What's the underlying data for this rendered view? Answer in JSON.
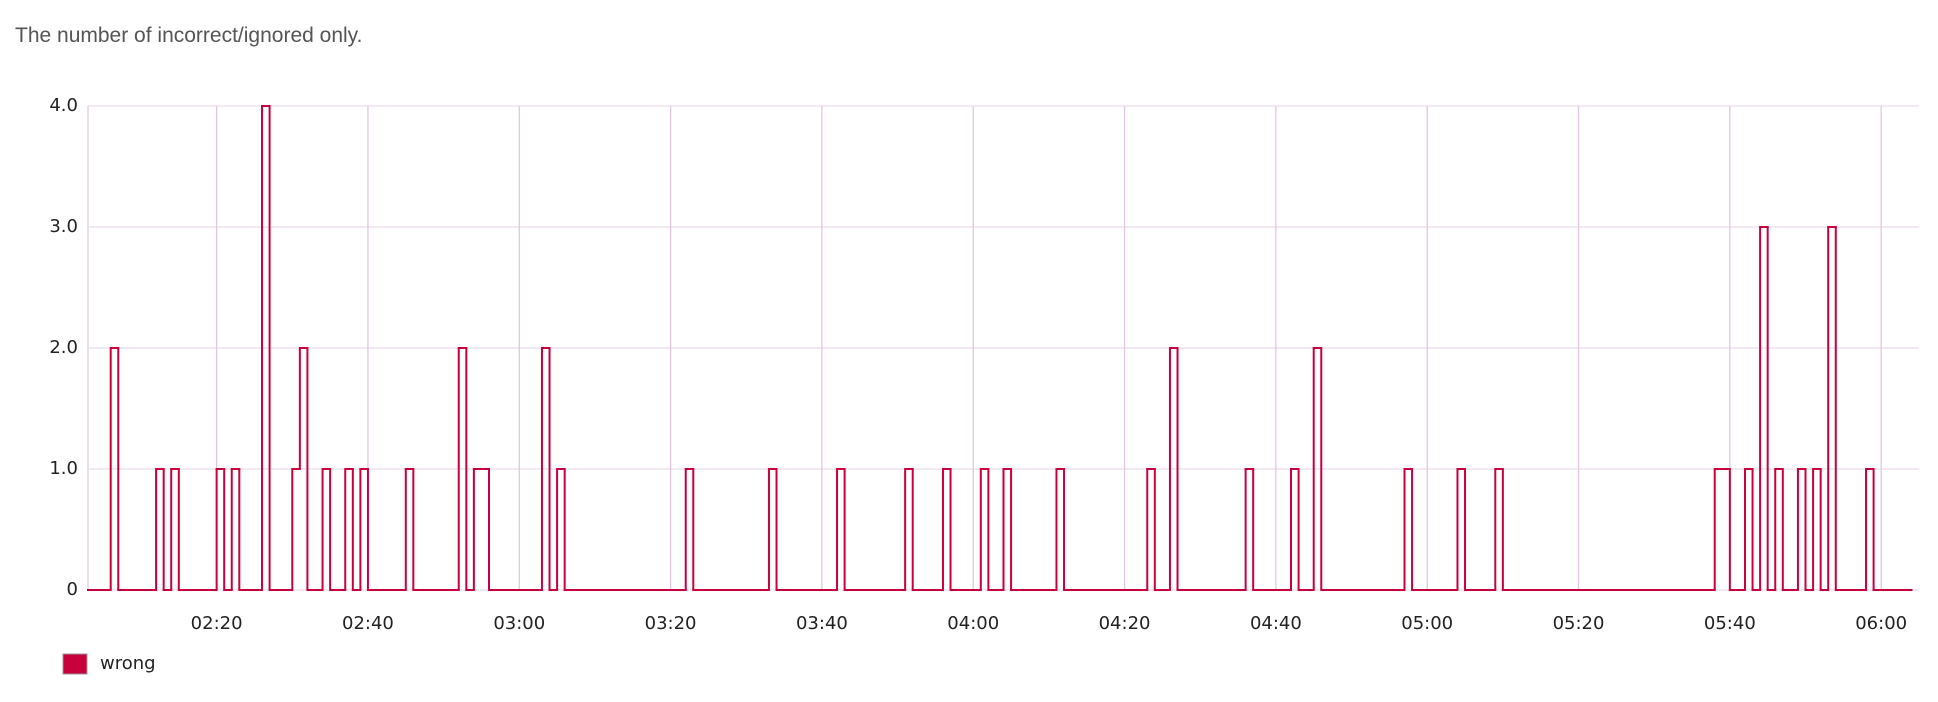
{
  "chart_data": {
    "type": "line",
    "step": "post",
    "title": "The number of incorrect/ignored only.",
    "x": [
      "02:03",
      "02:06",
      "02:07",
      "02:12",
      "02:13",
      "02:14",
      "02:15",
      "02:20",
      "02:21",
      "02:22",
      "02:23",
      "02:26",
      "02:27",
      "02:30",
      "02:31",
      "02:32",
      "02:34",
      "02:35",
      "02:37",
      "02:38",
      "02:39",
      "02:40",
      "02:45",
      "02:46",
      "02:52",
      "02:53",
      "02:54",
      "02:56",
      "03:03",
      "03:04",
      "03:05",
      "03:06",
      "03:22",
      "03:23",
      "03:33",
      "03:34",
      "03:42",
      "03:43",
      "03:51",
      "03:52",
      "03:56",
      "03:57",
      "04:01",
      "04:02",
      "04:04",
      "04:05",
      "04:11",
      "04:12",
      "04:23",
      "04:24",
      "04:26",
      "04:27",
      "04:36",
      "04:37",
      "04:42",
      "04:43",
      "04:45",
      "04:46",
      "04:57",
      "04:58",
      "05:04",
      "05:05",
      "05:09",
      "05:10",
      "05:38",
      "05:40",
      "05:42",
      "05:43",
      "05:44",
      "05:45",
      "05:46",
      "05:47",
      "05:49",
      "05:50",
      "05:51",
      "05:52",
      "05:53",
      "05:54",
      "05:58",
      "05:59",
      "06:04"
    ],
    "series": [
      {
        "name": "wrong",
        "color": "#c8003c",
        "values": [
          0,
          2,
          0,
          1,
          0,
          1,
          0,
          1,
          0,
          1,
          0,
          4,
          0,
          1,
          2,
          0,
          1,
          0,
          1,
          0,
          1,
          0,
          1,
          0,
          2,
          0,
          1,
          0,
          2,
          0,
          1,
          0,
          1,
          0,
          1,
          0,
          1,
          0,
          1,
          0,
          1,
          0,
          1,
          0,
          1,
          0,
          1,
          0,
          1,
          0,
          2,
          0,
          1,
          0,
          1,
          0,
          2,
          0,
          1,
          0,
          1,
          0,
          1,
          0,
          1,
          0,
          1,
          0,
          3,
          0,
          1,
          0,
          1,
          0,
          1,
          0,
          3,
          0,
          1,
          0,
          0
        ]
      }
    ],
    "xlim": [
      "02:03",
      "06:05"
    ],
    "xticks": [
      "02:20",
      "02:40",
      "03:00",
      "03:20",
      "03:40",
      "04:00",
      "04:20",
      "04:40",
      "05:00",
      "05:20",
      "05:40",
      "06:00"
    ],
    "ylim": [
      0,
      4
    ],
    "yticks": [
      0,
      {
        "value": 1,
        "label": "1.0"
      },
      {
        "value": 2,
        "label": "2.0"
      },
      {
        "value": 3,
        "label": "3.0"
      },
      {
        "value": 4,
        "label": "4.0"
      }
    ],
    "grid": true,
    "legend": "bottom-left"
  }
}
